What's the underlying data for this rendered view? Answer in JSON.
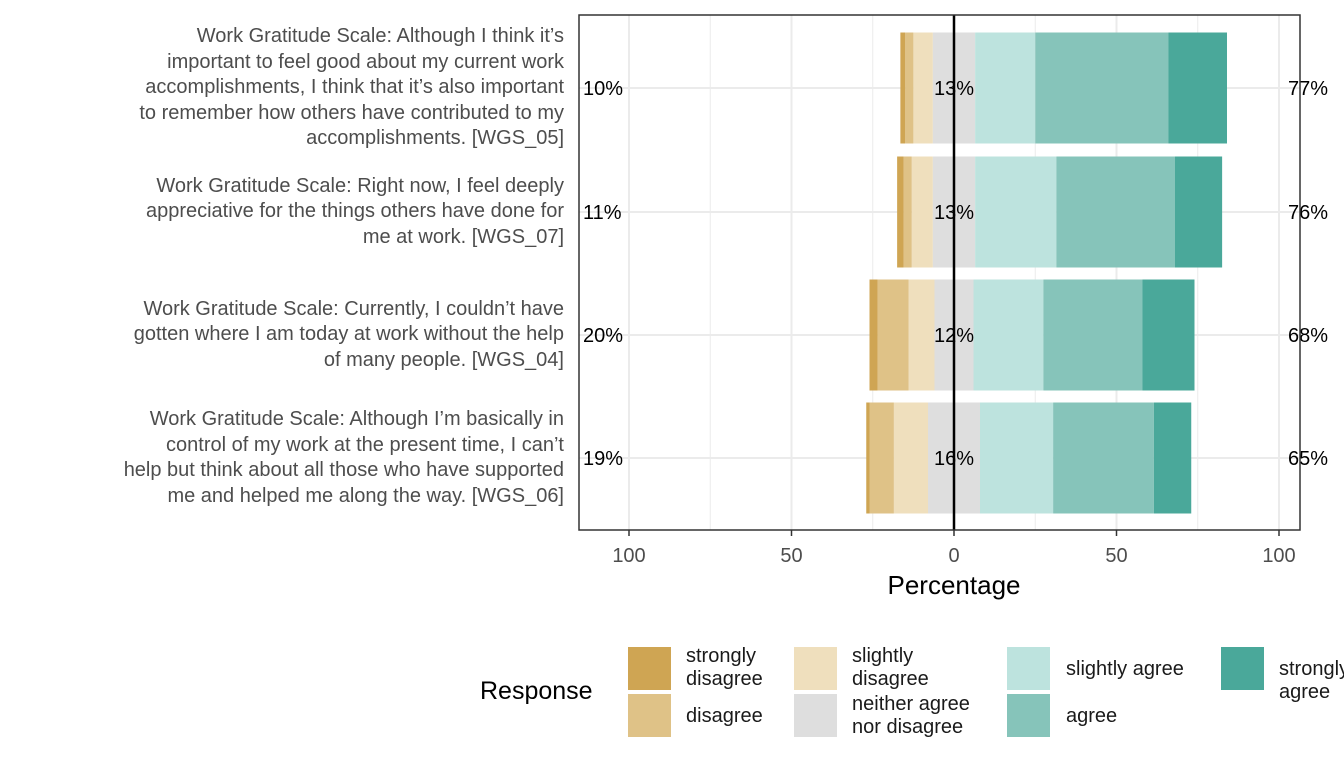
{
  "chart_data": {
    "type": "bar",
    "orientation": "horizontal-diverging",
    "title": "",
    "xlabel": "Percentage",
    "ylabel": "",
    "xlim": [
      -100,
      100
    ],
    "x_ticks": [
      "100",
      "50",
      "0",
      "50",
      "100"
    ],
    "x_tick_values": [
      -100,
      -50,
      0,
      50,
      100
    ],
    "legend_title": "Response",
    "categories": [
      "Work Gratitude Scale: Although I think it’s important to feel good about my current work accomplishments, I think that it’s also important to remember how others have contributed to my accomplishments. [WGS_05]",
      "Work Gratitude Scale: Right now, I feel deeply appreciative for the things others have done for me at work. [WGS_07]",
      "Work Gratitude Scale: Currently, I couldn’t have gotten where I am today at work without the help of many people. [WGS_04]",
      "Work Gratitude Scale: Although I’m basically in control of my work at the present time, I can’t help but think about all those who have supported me and helped me along the way. [WGS_06]"
    ],
    "category_lines": [
      [
        "Work Gratitude Scale: Although I think it’s",
        "important to feel good about my current work",
        "accomplishments, I think that it’s also important",
        "to remember how others have contributed to my",
        "accomplishments. [WGS_05]"
      ],
      [
        "Work Gratitude Scale: Right now, I feel deeply",
        "appreciative for the things others have done for",
        "me at work. [WGS_07]"
      ],
      [
        "Work Gratitude Scale: Currently, I couldn’t have",
        "gotten where I am today at work without the help",
        "of many people. [WGS_04]"
      ],
      [
        "Work Gratitude Scale: Although I’m basically in",
        "control of my work at the present time, I can’t",
        "help but think about all those who have supported",
        "me and helped me along the way. [WGS_06]"
      ]
    ],
    "series": [
      {
        "name": "strongly disagree",
        "label_lines": [
          "strongly",
          "disagree"
        ],
        "color": "#CFA553",
        "values": [
          1.5,
          2.0,
          2.5,
          1.0
        ]
      },
      {
        "name": "disagree",
        "label_lines": [
          "disagree"
        ],
        "color": "#DFC287",
        "values": [
          2.5,
          2.5,
          9.5,
          7.5
        ]
      },
      {
        "name": "slightly disagree",
        "label_lines": [
          "slightly",
          "disagree"
        ],
        "color": "#EFDFBD",
        "values": [
          6.0,
          6.5,
          8.0,
          10.5
        ]
      },
      {
        "name": "neither agree nor disagree",
        "label_lines": [
          "neither agree",
          "nor disagree"
        ],
        "color": "#DEDEDE",
        "values": [
          13.0,
          13.0,
          12.0,
          16.0
        ]
      },
      {
        "name": "slightly agree",
        "label_lines": [
          "slightly agree"
        ],
        "color": "#BDE3DE",
        "values": [
          18.5,
          25.0,
          21.5,
          22.5
        ]
      },
      {
        "name": "agree",
        "label_lines": [
          "agree"
        ],
        "color": "#86C4BA",
        "values": [
          41.0,
          36.5,
          30.5,
          31.0
        ]
      },
      {
        "name": "strongly agree",
        "label_lines": [
          "strongly agree"
        ],
        "color": "#4AA89A",
        "values": [
          18.0,
          14.5,
          16.0,
          11.5
        ]
      }
    ],
    "labels_left": [
      "10%",
      "11%",
      "20%",
      "19%"
    ],
    "labels_center": [
      "13%",
      "13%",
      "12%",
      "16%"
    ],
    "labels_right": [
      "77%",
      "76%",
      "68%",
      "65%"
    ],
    "grid": true
  }
}
